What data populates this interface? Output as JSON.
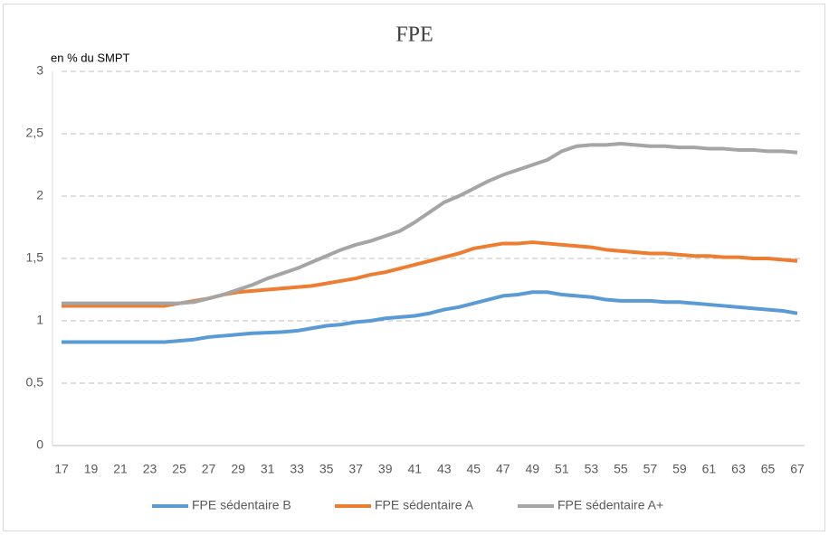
{
  "chart_data": {
    "type": "line",
    "title": "FPE",
    "y_label": "en % du SMPT",
    "x": [
      17,
      18,
      19,
      20,
      21,
      22,
      23,
      24,
      25,
      26,
      27,
      28,
      29,
      30,
      31,
      32,
      33,
      34,
      35,
      36,
      37,
      38,
      39,
      40,
      41,
      42,
      43,
      44,
      45,
      46,
      47,
      48,
      49,
      50,
      51,
      52,
      53,
      54,
      55,
      56,
      57,
      58,
      59,
      60,
      61,
      62,
      63,
      64,
      65,
      66,
      67
    ],
    "xlim": [
      17,
      67
    ],
    "xticks": [
      17,
      19,
      21,
      23,
      25,
      27,
      29,
      31,
      33,
      35,
      37,
      39,
      41,
      43,
      45,
      47,
      49,
      51,
      53,
      55,
      57,
      59,
      61,
      63,
      65,
      67
    ],
    "ylim": [
      0,
      3
    ],
    "yticks": [
      0,
      {
        "value": 0.5,
        "label": "0,5"
      },
      1,
      {
        "value": 1.5,
        "label": "1,5"
      },
      2,
      {
        "value": 2.5,
        "label": "2,5"
      },
      3
    ],
    "grid": true,
    "legend": "bottom",
    "series": [
      {
        "name": "FPE sédentaire B",
        "color": "#5b9bd5",
        "values": [
          0.83,
          0.83,
          0.83,
          0.83,
          0.83,
          0.83,
          0.83,
          0.83,
          0.84,
          0.85,
          0.87,
          0.88,
          0.89,
          0.9,
          0.905,
          0.91,
          0.92,
          0.94,
          0.96,
          0.97,
          0.99,
          1.0,
          1.02,
          1.03,
          1.04,
          1.06,
          1.09,
          1.11,
          1.14,
          1.17,
          1.2,
          1.21,
          1.23,
          1.23,
          1.21,
          1.2,
          1.19,
          1.17,
          1.16,
          1.16,
          1.16,
          1.15,
          1.15,
          1.14,
          1.13,
          1.12,
          1.11,
          1.1,
          1.09,
          1.08,
          1.06
        ]
      },
      {
        "name": "FPE sédentaire A",
        "color": "#ed7d31",
        "values": [
          1.12,
          1.12,
          1.12,
          1.12,
          1.12,
          1.12,
          1.12,
          1.12,
          1.14,
          1.16,
          1.18,
          1.21,
          1.23,
          1.24,
          1.25,
          1.26,
          1.27,
          1.28,
          1.3,
          1.32,
          1.34,
          1.37,
          1.39,
          1.42,
          1.45,
          1.48,
          1.51,
          1.54,
          1.58,
          1.6,
          1.62,
          1.62,
          1.63,
          1.62,
          1.61,
          1.6,
          1.59,
          1.57,
          1.56,
          1.55,
          1.54,
          1.54,
          1.53,
          1.52,
          1.52,
          1.51,
          1.51,
          1.5,
          1.5,
          1.49,
          1.48
        ]
      },
      {
        "name": "FPE sédentaire A+",
        "color": "#a5a5a5",
        "values": [
          1.14,
          1.14,
          1.14,
          1.14,
          1.14,
          1.14,
          1.14,
          1.14,
          1.14,
          1.15,
          1.18,
          1.21,
          1.25,
          1.29,
          1.34,
          1.38,
          1.42,
          1.47,
          1.52,
          1.57,
          1.61,
          1.64,
          1.68,
          1.72,
          1.79,
          1.87,
          1.95,
          2.0,
          2.06,
          2.12,
          2.17,
          2.21,
          2.25,
          2.29,
          2.36,
          2.4,
          2.41,
          2.41,
          2.42,
          2.41,
          2.4,
          2.4,
          2.39,
          2.39,
          2.38,
          2.38,
          2.37,
          2.37,
          2.36,
          2.36,
          2.35
        ]
      }
    ]
  }
}
